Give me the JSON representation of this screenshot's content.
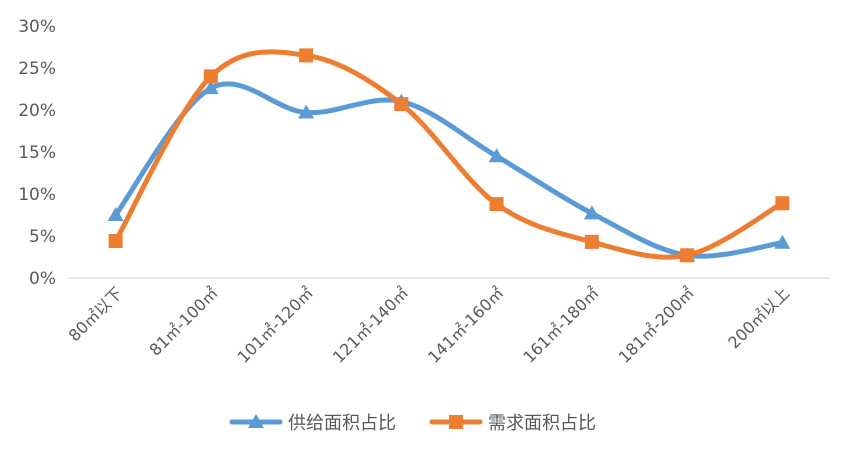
{
  "chart_data": {
    "type": "line",
    "smooth": true,
    "categories": [
      "80㎡以下",
      "81㎡-100㎡",
      "101㎡-120㎡",
      "121㎡-140㎡",
      "141㎡-160㎡",
      "161㎡-180㎡",
      "181㎡-200㎡",
      "200㎡以上"
    ],
    "series": [
      {
        "name": "供给面积占比",
        "color": "#5B9BD5",
        "marker": "triangle",
        "values": [
          7.5,
          22.6,
          19.7,
          21.0,
          14.5,
          7.7,
          2.7,
          4.2
        ]
      },
      {
        "name": "需求面积占比",
        "color": "#ED7D31",
        "marker": "square",
        "values": [
          4.4,
          24.0,
          26.5,
          20.7,
          8.8,
          4.3,
          2.7,
          8.9
        ]
      }
    ],
    "ylim": [
      0,
      30
    ],
    "yticks": [
      "0%",
      "5%",
      "10%",
      "15%",
      "20%",
      "25%",
      "30%"
    ],
    "grid": false,
    "legend_position": "bottom"
  }
}
